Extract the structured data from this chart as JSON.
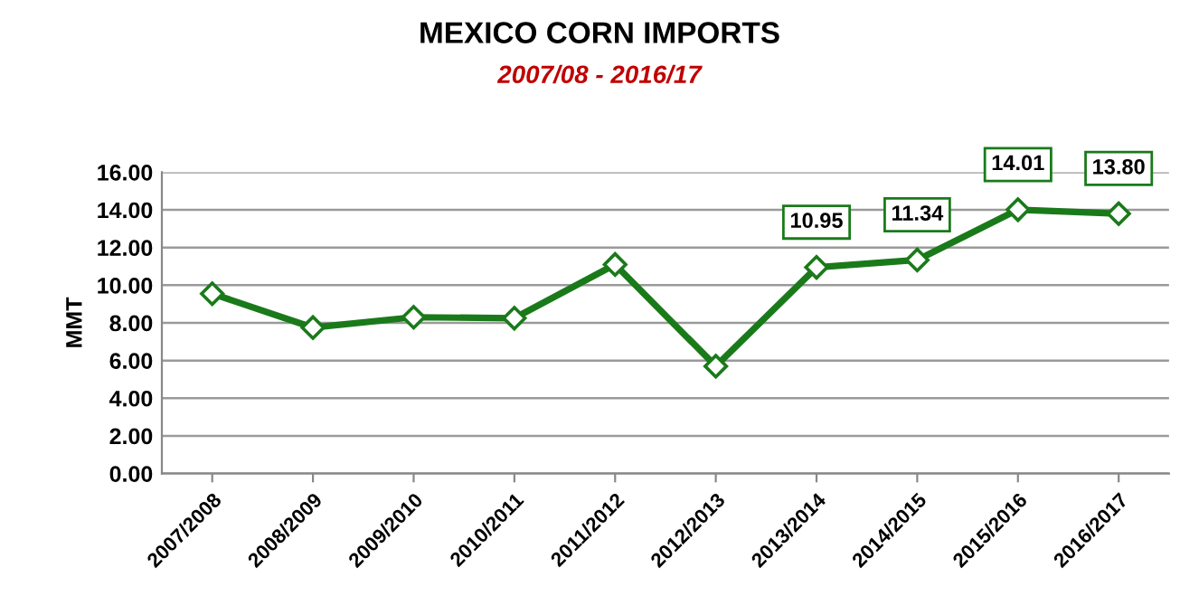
{
  "chart_data": {
    "type": "line",
    "title": "MEXICO CORN IMPORTS",
    "subtitle": "2007/08 - 2016/17",
    "ylabel": "MMT",
    "categories": [
      "2007/2008",
      "2008/2009",
      "2009/2010",
      "2010/2011",
      "2011/2012",
      "2012/2013",
      "2013/2014",
      "2014/2015",
      "2015/2016",
      "2016/2017"
    ],
    "series": [
      {
        "color": "#1a7a1a",
        "values": [
          9.55,
          7.75,
          8.3,
          8.25,
          11.1,
          5.7,
          10.95,
          11.34,
          14.01,
          13.8
        ],
        "value_labels": [
          null,
          null,
          null,
          null,
          null,
          null,
          "10.95",
          "11.34",
          "14.01",
          "13.80"
        ]
      }
    ],
    "ylim": [
      0,
      16
    ],
    "yticks": [
      {
        "value": 0,
        "label": "0.00"
      },
      {
        "value": 2,
        "label": "2.00"
      },
      {
        "value": 4,
        "label": "4.00"
      },
      {
        "value": 6,
        "label": "6.00"
      },
      {
        "value": 8,
        "label": "8.00"
      },
      {
        "value": 10,
        "label": "10.00"
      },
      {
        "value": 12,
        "label": "12.00"
      },
      {
        "value": 14,
        "label": "14.00"
      },
      {
        "value": 16,
        "label": "16.00"
      }
    ],
    "grid": "y",
    "marker": "diamond",
    "line_style": "solid",
    "legend": false
  }
}
